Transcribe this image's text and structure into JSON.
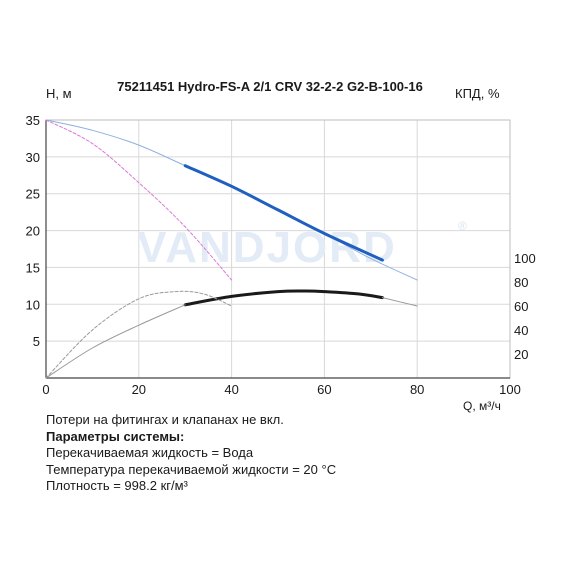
{
  "chart_data": {
    "type": "line",
    "title": "75211451 Hydro-FS-A 2/1 CRV 32-2-2 G2-B-100-16",
    "ylabel": "H, м",
    "y2label": "КПД, %",
    "xlabel": "Q, м³/ч",
    "watermark": "VANDJORD",
    "watermark_mark": "®",
    "xlim": [
      0,
      100
    ],
    "ylim": [
      0,
      35
    ],
    "y2lim": [
      0,
      100
    ],
    "x_ticks": [
      "0",
      "20",
      "40",
      "60",
      "80",
      "100"
    ],
    "y_ticks": [
      "5",
      "10",
      "15",
      "20",
      "25",
      "30",
      "35"
    ],
    "y2_ticks": [
      "20",
      "40",
      "60",
      "80",
      "100"
    ],
    "grid": true,
    "series": [
      {
        "key": "head_full",
        "axis": "left",
        "color": "#8fb0e0",
        "width": 1,
        "x": [
          0,
          10,
          20,
          30,
          40,
          50,
          60,
          70,
          80
        ],
        "y": [
          35,
          33.6,
          31.6,
          28.8,
          26.0,
          22.8,
          19.6,
          16.2,
          13.3
        ]
      },
      {
        "key": "head_operating",
        "axis": "left",
        "color": "#1f5fbf",
        "width": 3,
        "x": [
          30,
          40,
          50,
          60,
          72.5
        ],
        "y": [
          28.8,
          26.0,
          22.8,
          19.6,
          16.0
        ]
      },
      {
        "key": "head_single",
        "axis": "left",
        "color": "#d97ad9",
        "width": 1,
        "dash": "3,2",
        "x": [
          0,
          10,
          20,
          30,
          40
        ],
        "y": [
          35,
          31.8,
          26.5,
          20.5,
          13.3
        ]
      },
      {
        "key": "efficiency",
        "axis": "right",
        "color": "#1a1a1a",
        "width": 3,
        "x": [
          30,
          40,
          50,
          56,
          60,
          67.5,
          72.5
        ],
        "y": [
          61,
          68,
          72,
          72.5,
          72,
          70,
          67
        ]
      },
      {
        "key": "efficiency_ext",
        "axis": "right",
        "color": "#999999",
        "width": 1,
        "x": [
          72.5,
          80
        ],
        "y": [
          67,
          60
        ]
      },
      {
        "key": "efficiency_low",
        "axis": "right",
        "color": "#999999",
        "width": 1,
        "x": [
          0,
          10,
          20,
          30
        ],
        "y": [
          0,
          25,
          44,
          61
        ]
      },
      {
        "key": "efficiency_single",
        "axis": "right",
        "color": "#999999",
        "width": 1,
        "dash": "3,2",
        "x": [
          0,
          10,
          20,
          28,
          34,
          40
        ],
        "y": [
          0,
          40,
          66,
          72,
          70,
          60
        ]
      }
    ]
  },
  "notes": {
    "line1": "Потери на фитингах и клапанах не вкл.",
    "heading": "Параметры системы:",
    "line2": "Перекачиваемая жидкость = Вода",
    "line3": "Температура перекачиваемой жидкости = 20 °C",
    "line4": "Плотность = 998.2 кг/м³"
  }
}
